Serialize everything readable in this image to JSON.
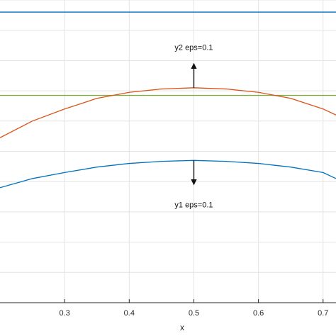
{
  "chart_data": {
    "type": "line",
    "xlabel": "x",
    "ylabel": "",
    "xlim": [
      0.2,
      0.72
    ],
    "ylim": [
      0,
      1
    ],
    "grid": true,
    "x_ticks": [
      "0.3",
      "0.4",
      "0.5",
      "0.6",
      "0.7"
    ],
    "x_tick_values": [
      0.3,
      0.4,
      0.5,
      0.6,
      0.7
    ],
    "y_grid_values": [
      0.0,
      0.1,
      0.2,
      0.3,
      0.4,
      0.5,
      0.6,
      0.7,
      0.8,
      0.9,
      1.0
    ],
    "series": [
      {
        "color": "#0072BD",
        "x": [
          0.2,
          0.25,
          0.3,
          0.35,
          0.4,
          0.45,
          0.5,
          0.55,
          0.6,
          0.65,
          0.7,
          0.72
        ],
        "values": [
          0.96,
          0.96,
          0.96,
          0.96,
          0.96,
          0.96,
          0.96,
          0.96,
          0.96,
          0.96,
          0.96,
          0.96
        ]
      },
      {
        "color": "#77AC30",
        "x": [
          0.2,
          0.25,
          0.3,
          0.35,
          0.4,
          0.45,
          0.5,
          0.55,
          0.6,
          0.65,
          0.7,
          0.72
        ],
        "values": [
          0.685,
          0.685,
          0.685,
          0.685,
          0.685,
          0.685,
          0.685,
          0.685,
          0.685,
          0.685,
          0.685,
          0.685
        ]
      },
      {
        "color": "#D95319",
        "x": [
          0.2,
          0.25,
          0.3,
          0.35,
          0.4,
          0.45,
          0.5,
          0.55,
          0.6,
          0.65,
          0.7,
          0.72
        ],
        "values": [
          0.545,
          0.6,
          0.64,
          0.675,
          0.695,
          0.706,
          0.71,
          0.706,
          0.695,
          0.675,
          0.64,
          0.62
        ]
      },
      {
        "color": "#0072BD",
        "x": [
          0.2,
          0.25,
          0.3,
          0.35,
          0.4,
          0.45,
          0.5,
          0.55,
          0.6,
          0.65,
          0.7,
          0.72
        ],
        "values": [
          0.38,
          0.41,
          0.43,
          0.448,
          0.46,
          0.467,
          0.47,
          0.467,
          0.46,
          0.448,
          0.43,
          0.41
        ]
      }
    ],
    "annotations": [
      {
        "text": "y2 eps=0.1",
        "x": 0.5,
        "y": 0.835,
        "arrow": "up",
        "arrow_from": 0.71,
        "arrow_to": 0.79
      },
      {
        "text": "y1 eps=0.1",
        "x": 0.5,
        "y": 0.315,
        "arrow": "down",
        "arrow_from": 0.47,
        "arrow_to": 0.39
      }
    ]
  }
}
